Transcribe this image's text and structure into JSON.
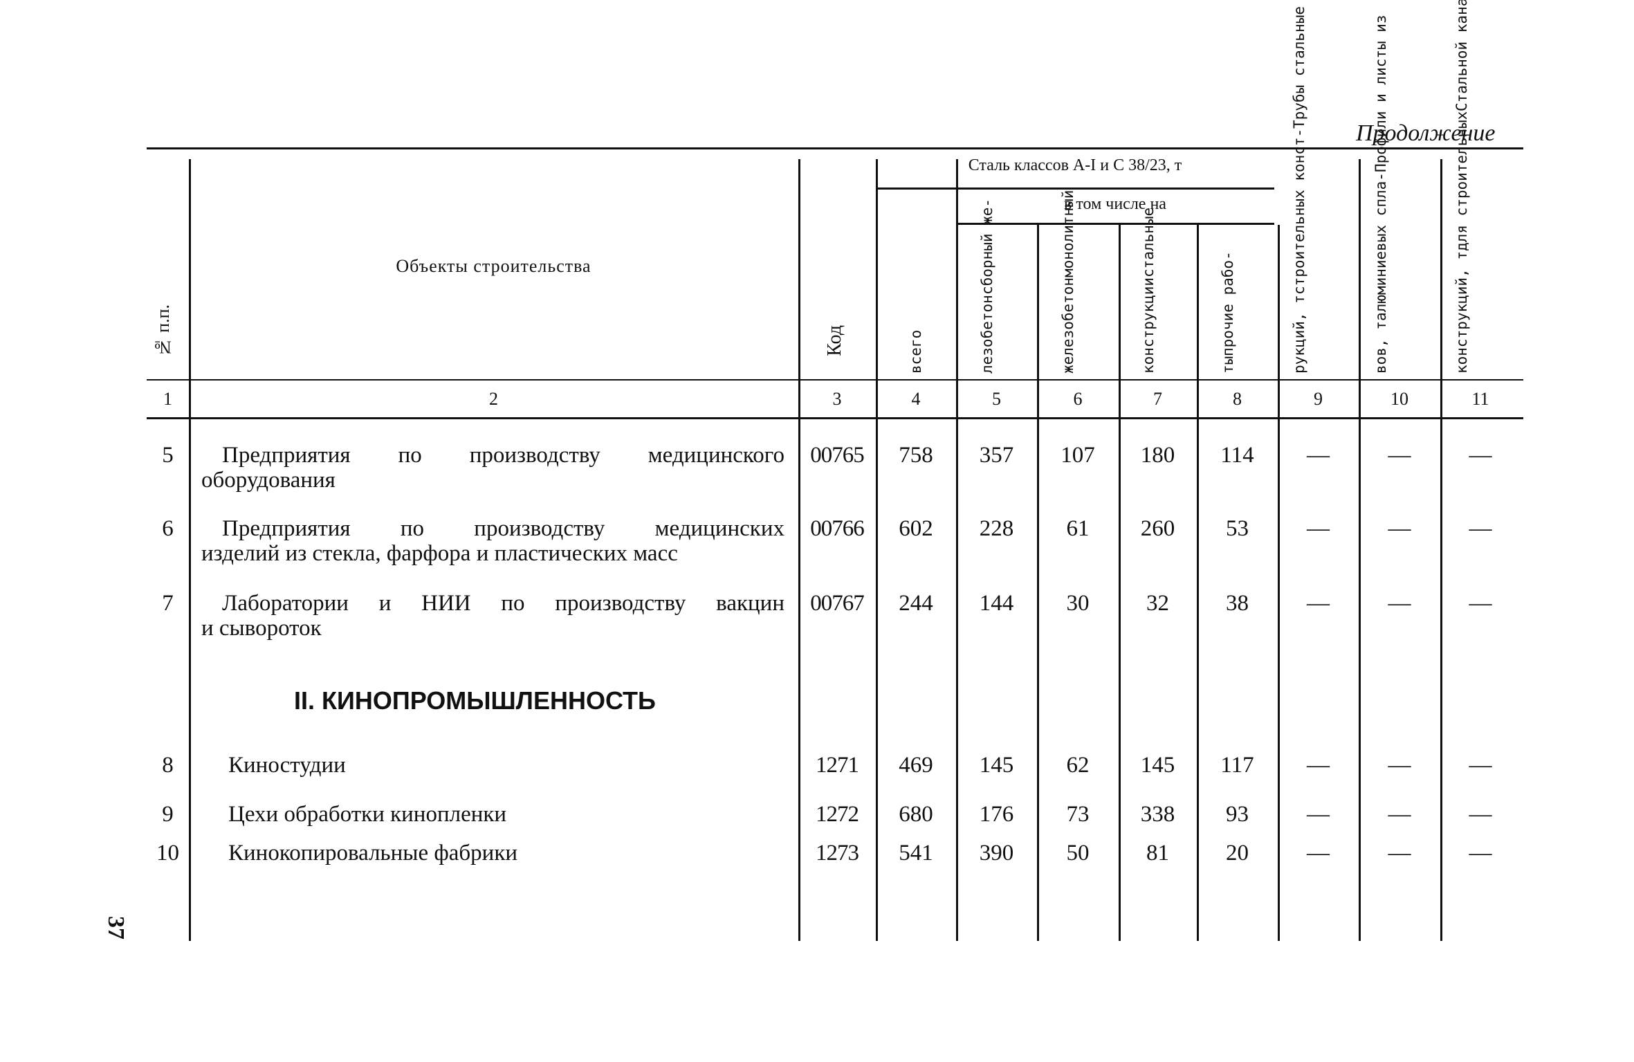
{
  "continuation": "Продолжение",
  "page_number": "37",
  "header": {
    "col1": "№ п.п.",
    "col2": "Объекты строительства",
    "col3": "Код",
    "steel_group": "Сталь классов А-I и С 38/23, т",
    "including": "в том числе на",
    "col4": [
      "всего"
    ],
    "col5": [
      "сборный же-",
      "лезобетон"
    ],
    "col6": [
      "монолитный",
      "железобетон"
    ],
    "col7": [
      "стальные",
      "конструкции"
    ],
    "col8": [
      "прочие рабо-",
      "ты"
    ],
    "col9": [
      "Трубы стальные для",
      "строительных конст-",
      "рукций, т"
    ],
    "col10": [
      "Профили и листы из",
      "алюминиевых спла-",
      "вов, т"
    ],
    "col11": [
      "Стальной канат (трос)",
      "для строительных",
      "конструкций, т"
    ],
    "numbers": [
      "1",
      "2",
      "3",
      "4",
      "5",
      "6",
      "7",
      "8",
      "9",
      "10",
      "11"
    ]
  },
  "rows": [
    {
      "n": "5",
      "name": [
        "Предприятия по производству медицинского",
        "оборудования"
      ],
      "code": "00765",
      "values": [
        "758",
        "357",
        "107",
        "180",
        "114",
        "—",
        "—",
        "—"
      ]
    },
    {
      "n": "6",
      "name": [
        "Предприятия по производству медицинских",
        "изделий из стекла, фарфора и пластических масс"
      ],
      "code": "00766",
      "values": [
        "602",
        "228",
        "61",
        "260",
        "53",
        "—",
        "—",
        "—"
      ]
    },
    {
      "n": "7",
      "name": [
        "Лаборатории и НИИ по производству вакцин",
        "и сывороток"
      ],
      "code": "00767",
      "values": [
        "244",
        "144",
        "30",
        "32",
        "38",
        "—",
        "—",
        "—"
      ]
    },
    {
      "n": "8",
      "name": [
        "Киностудии"
      ],
      "code": "1271",
      "values": [
        "469",
        "145",
        "62",
        "145",
        "117",
        "—",
        "—",
        "—"
      ]
    },
    {
      "n": "9",
      "name": [
        "Цехи обработки кинопленки"
      ],
      "code": "1272",
      "values": [
        "680",
        "176",
        "73",
        "338",
        "93",
        "—",
        "—",
        "—"
      ]
    },
    {
      "n": "10",
      "name": [
        "Кинокопировальные фабрики"
      ],
      "code": "1273",
      "values": [
        "541",
        "390",
        "50",
        "81",
        "20",
        "—",
        "—",
        "—"
      ]
    }
  ],
  "section_title": "II. КИНОПРОМЫШЛЕННОСТЬ"
}
